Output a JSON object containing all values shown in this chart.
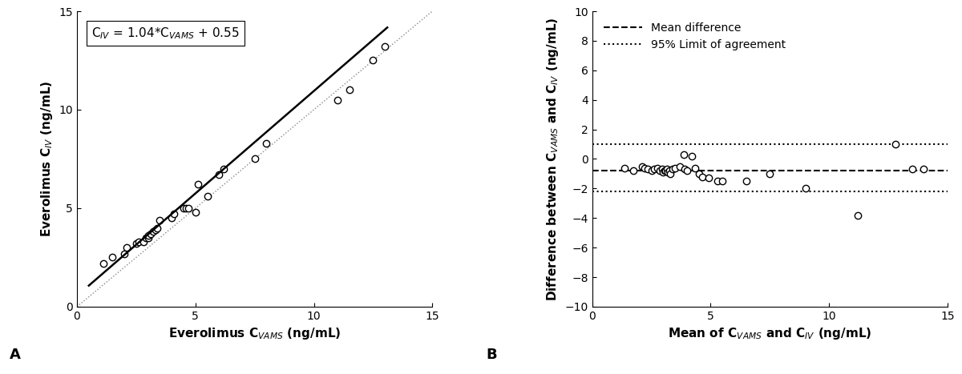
{
  "scatter_x": [
    1.1,
    1.5,
    2.0,
    2.1,
    2.5,
    2.6,
    2.8,
    2.9,
    3.0,
    3.0,
    3.1,
    3.2,
    3.3,
    3.4,
    3.5,
    4.0,
    4.1,
    4.5,
    4.6,
    4.7,
    5.0,
    5.1,
    5.5,
    6.0,
    6.2,
    7.5,
    8.0,
    11.0,
    11.5,
    12.5,
    13.0
  ],
  "scatter_y": [
    2.2,
    2.5,
    2.7,
    3.0,
    3.2,
    3.3,
    3.3,
    3.5,
    3.5,
    3.6,
    3.7,
    3.8,
    3.9,
    4.0,
    4.4,
    4.5,
    4.7,
    5.0,
    5.0,
    5.0,
    4.8,
    6.2,
    5.6,
    6.7,
    7.0,
    7.5,
    8.3,
    10.5,
    11.0,
    12.5,
    13.2
  ],
  "regression_slope": 1.04,
  "regression_intercept": 0.55,
  "panel_a_xlim": [
    0,
    15
  ],
  "panel_a_ylim": [
    0,
    15
  ],
  "panel_a_xlabel": "Everolimus C$_{VAMS}$ (ng/mL)",
  "panel_a_ylabel": "Everolimus C$_{IV}$ (ng/mL)",
  "panel_a_annotation": "C$_{IV}$ = 1.04*C$_{VAMS}$ + 0.55",
  "bland_mean": [
    1.35,
    1.75,
    2.1,
    2.2,
    2.35,
    2.5,
    2.6,
    2.75,
    2.85,
    2.95,
    3.0,
    3.05,
    3.1,
    3.15,
    3.2,
    3.25,
    3.3,
    3.4,
    3.5,
    3.7,
    3.85,
    3.9,
    4.0,
    4.2,
    4.35,
    4.5,
    4.65,
    4.9,
    5.3,
    5.5,
    6.5,
    7.5,
    9.0,
    11.2,
    12.8,
    13.5,
    14.0
  ],
  "bland_diff": [
    -0.6,
    -0.8,
    -0.5,
    -0.6,
    -0.7,
    -0.8,
    -0.7,
    -0.6,
    -0.8,
    -0.7,
    -0.9,
    -0.8,
    -0.8,
    -0.7,
    -0.9,
    -0.8,
    -1.0,
    -0.7,
    -0.6,
    -0.5,
    0.3,
    -0.7,
    -0.8,
    0.2,
    -0.6,
    -1.0,
    -1.2,
    -1.3,
    -1.5,
    -1.5,
    -1.5,
    -1.0,
    -2.0,
    -3.8,
    1.0,
    -0.7,
    -0.7
  ],
  "mean_diff_line": -0.8,
  "upper_loa": 1.0,
  "lower_loa": -2.2,
  "panel_b_xlim": [
    0,
    15
  ],
  "panel_b_ylim": [
    -10,
    10
  ],
  "panel_b_xlabel": "Mean of C$_{VAMS}$ and C$_{IV}$ (ng/mL)",
  "panel_b_ylabel": "Difference between C$_{VAMS}$ and C$_{IV}$ (ng/mL)",
  "legend_mean_diff": "Mean difference",
  "legend_loa": "95% Limit of agreement",
  "label_a": "A",
  "label_b": "B",
  "marker_size": 6,
  "font_size_annotation": 11,
  "font_size_axis_label": 11,
  "font_size_tick": 10,
  "font_size_panel_label": 13
}
